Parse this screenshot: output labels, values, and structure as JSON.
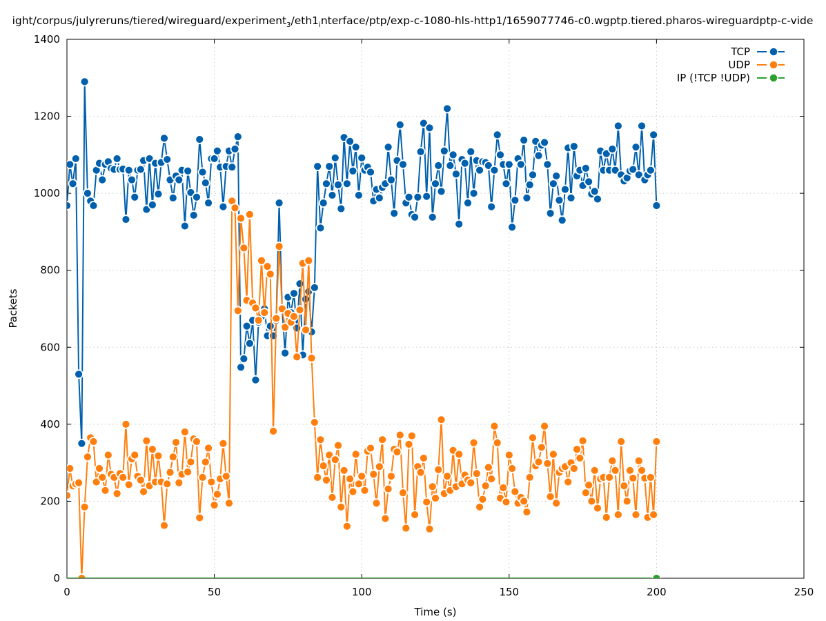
{
  "chart_data": {
    "type": "line",
    "title_parts": [
      {
        "t": "ight/corpus/julyreruns/tiered/wireguard/experiment"
      },
      {
        "t": "3",
        "sub": true
      },
      {
        "t": "/eth1"
      },
      {
        "t": "i",
        "sub": true
      },
      {
        "t": "nterface/ptp/exp-c-1080-hls-http1/1659077746-c0.wgptp.tiered.pharos-wireguardptp-c-vide"
      }
    ],
    "xlabel": "Time (s)",
    "ylabel": "Packets",
    "xlim": [
      0,
      250
    ],
    "ylim": [
      0,
      1400
    ],
    "xticks": [
      0,
      50,
      100,
      150,
      200,
      250
    ],
    "yticks": [
      0,
      200,
      400,
      600,
      800,
      1000,
      1200,
      1400
    ],
    "grid": true,
    "legend_placement": "top-right",
    "series": [
      {
        "name": "TCP",
        "color": "#0060ad",
        "values": [
          968,
          1075,
          1025,
          1090,
          530,
          350,
          1290,
          1000,
          980,
          968,
          1060,
          1078,
          1035,
          1075,
          1082,
          1065,
          1062,
          1090,
          1062,
          1063,
          932,
          1060,
          1035,
          990,
          1060,
          1062,
          1085,
          958,
          1090,
          970,
          1078,
          998,
          1080,
          1143,
          1088,
          1035,
          988,
          1045,
          1035,
          1060,
          915,
          1058,
          1002,
          943,
          990,
          1140,
          1055,
          1027,
          975,
          1090,
          1090,
          1110,
          1068,
          965,
          1070,
          1110,
          1068,
          1115,
          1147,
          548,
          570,
          655,
          610,
          670,
          515,
          665,
          680,
          700,
          630,
          655,
          630,
          670,
          975,
          700,
          585,
          730,
          690,
          740,
          650,
          765,
          580,
          725,
          745,
          640,
          755,
          1070,
          910,
          975,
          1025,
          1070,
          995,
          1092,
          1022,
          960,
          1145,
          1025,
          1135,
          1058,
          1120,
          995,
          1092,
          1060,
          1068,
          1055,
          980,
          1010,
          988,
          1015,
          1025,
          1120,
          1035,
          948,
          1085,
          1178,
          1075,
          975,
          990,
          945,
          938,
          990,
          1108,
          1182,
          992,
          1170,
          938,
          1025,
          1072,
          1005,
          1110,
          1220,
          1072,
          1100,
          1050,
          920,
          1088,
          1078,
          975,
          1108,
          1000,
          1085,
          1060,
          1082,
          1080,
          1072,
          965,
          1060,
          1152,
          1100,
          1075,
          1025,
          1075,
          912,
          982,
          1090,
          1075,
          1138,
          988,
          1022,
          1048,
          1135,
          1098,
          1125,
          1132,
          1075,
          948,
          1025,
          1045,
          982,
          930,
          1010,
          1118,
          988,
          1122,
          1045,
          1060,
          1020,
          1065,
          1030,
          998,
          1005,
          985,
          1110,
          1060,
          1103,
          1060,
          1115,
          1060,
          1175,
          1048,
          1032,
          1040,
          1058,
          1062,
          1120,
          1048,
          1175,
          1035,
          1048,
          1060,
          1152,
          968
        ]
      },
      {
        "name": "UDP",
        "color": "#ff7f0e",
        "values": [
          215,
          285,
          240,
          245,
          248,
          0,
          185,
          315,
          365,
          355,
          250,
          285,
          262,
          228,
          320,
          270,
          262,
          220,
          272,
          262,
          400,
          243,
          310,
          320,
          265,
          255,
          225,
          357,
          240,
          335,
          250,
          318,
          250,
          137,
          245,
          275,
          315,
          353,
          248,
          270,
          380,
          276,
          302,
          362,
          355,
          157,
          262,
          302,
          338,
          250,
          190,
          218,
          258,
          350,
          265,
          195,
          980,
          962,
          695,
          935,
          858,
          722,
          945,
          715,
          702,
          670,
          825,
          690,
          810,
          790,
          382,
          675,
          862,
          700,
          652,
          688,
          665,
          680,
          575,
          697,
          818,
          645,
          825,
          572,
          405,
          262,
          360,
          292,
          255,
          320,
          210,
          308,
          345,
          185,
          280,
          135,
          258,
          225,
          322,
          245,
          265,
          228,
          330,
          338,
          270,
          195,
          290,
          360,
          155,
          232,
          265,
          335,
          328,
          372,
          222,
          130,
          348,
          370,
          165,
          290,
          275,
          312,
          198,
          128,
          238,
          208,
          282,
          412,
          220,
          265,
          228,
          332,
          238,
          322,
          245,
          268,
          255,
          248,
          352,
          272,
          185,
          205,
          240,
          288,
          258,
          395,
          352,
          208,
          235,
          198,
          320,
          285,
          225,
          195,
          210,
          200,
          172,
          262,
          365,
          292,
          302,
          340,
          395,
          298,
          212,
          322,
          195,
          275,
          285,
          290,
          250,
          300,
          285,
          335,
          312,
          357,
          222,
          242,
          200,
          280,
          182,
          258,
          262,
          158,
          262,
          305,
          280,
          165,
          355,
          240,
          200,
          280,
          260,
          165,
          305,
          280,
          260,
          158,
          262,
          165,
          355
        ]
      },
      {
        "name": "IP (!TCP  !UDP)",
        "color": "#2ca02c",
        "x": [
          0,
          200
        ],
        "values": [
          0,
          0
        ]
      }
    ]
  }
}
